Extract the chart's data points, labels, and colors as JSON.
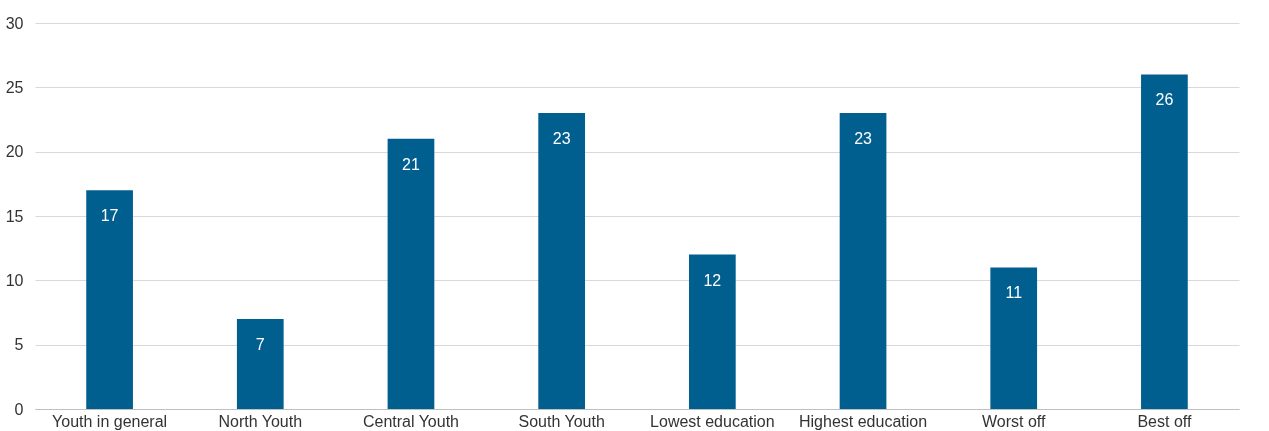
{
  "chart_data": {
    "type": "bar",
    "categories": [
      "Youth in general",
      "North Youth",
      "Central Youth",
      "South Youth",
      "Lowest education",
      "Highest education",
      "Worst off",
      "Best off"
    ],
    "values": [
      17,
      7,
      21,
      23,
      12,
      23,
      11,
      26
    ],
    "color": "#005f8f",
    "ylim": [
      0,
      30
    ],
    "yticks": [
      0,
      5,
      10,
      15,
      20,
      25,
      30
    ],
    "grid": "y",
    "data_labels": true
  }
}
